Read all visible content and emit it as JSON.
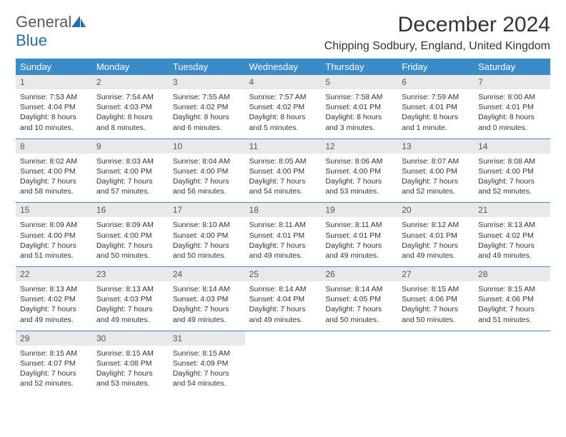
{
  "brand": {
    "general": "General",
    "blue": "Blue"
  },
  "title": "December 2024",
  "location": "Chipping Sodbury, England, United Kingdom",
  "colors": {
    "header_bg": "#3b8bc9",
    "header_text": "#ffffff",
    "daynum_bg": "#e9e9e9",
    "daynum_text": "#555555",
    "body_text": "#333333",
    "separator": "#3b8bc9",
    "brand_gray": "#5a5a5a",
    "brand_blue": "#1f6fb2",
    "page_bg": "#ffffff"
  },
  "typography": {
    "title_fontsize": 30,
    "location_fontsize": 16,
    "dow_fontsize": 13,
    "daynum_fontsize": 12,
    "body_fontsize": 10.5,
    "family": "Arial"
  },
  "dow": [
    "Sunday",
    "Monday",
    "Tuesday",
    "Wednesday",
    "Thursday",
    "Friday",
    "Saturday"
  ],
  "weeks": [
    [
      {
        "n": "1",
        "sr": "Sunrise: 7:53 AM",
        "ss": "Sunset: 4:04 PM",
        "dl1": "Daylight: 8 hours",
        "dl2": "and 10 minutes."
      },
      {
        "n": "2",
        "sr": "Sunrise: 7:54 AM",
        "ss": "Sunset: 4:03 PM",
        "dl1": "Daylight: 8 hours",
        "dl2": "and 8 minutes."
      },
      {
        "n": "3",
        "sr": "Sunrise: 7:55 AM",
        "ss": "Sunset: 4:02 PM",
        "dl1": "Daylight: 8 hours",
        "dl2": "and 6 minutes."
      },
      {
        "n": "4",
        "sr": "Sunrise: 7:57 AM",
        "ss": "Sunset: 4:02 PM",
        "dl1": "Daylight: 8 hours",
        "dl2": "and 5 minutes."
      },
      {
        "n": "5",
        "sr": "Sunrise: 7:58 AM",
        "ss": "Sunset: 4:01 PM",
        "dl1": "Daylight: 8 hours",
        "dl2": "and 3 minutes."
      },
      {
        "n": "6",
        "sr": "Sunrise: 7:59 AM",
        "ss": "Sunset: 4:01 PM",
        "dl1": "Daylight: 8 hours",
        "dl2": "and 1 minute."
      },
      {
        "n": "7",
        "sr": "Sunrise: 8:00 AM",
        "ss": "Sunset: 4:01 PM",
        "dl1": "Daylight: 8 hours",
        "dl2": "and 0 minutes."
      }
    ],
    [
      {
        "n": "8",
        "sr": "Sunrise: 8:02 AM",
        "ss": "Sunset: 4:00 PM",
        "dl1": "Daylight: 7 hours",
        "dl2": "and 58 minutes."
      },
      {
        "n": "9",
        "sr": "Sunrise: 8:03 AM",
        "ss": "Sunset: 4:00 PM",
        "dl1": "Daylight: 7 hours",
        "dl2": "and 57 minutes."
      },
      {
        "n": "10",
        "sr": "Sunrise: 8:04 AM",
        "ss": "Sunset: 4:00 PM",
        "dl1": "Daylight: 7 hours",
        "dl2": "and 56 minutes."
      },
      {
        "n": "11",
        "sr": "Sunrise: 8:05 AM",
        "ss": "Sunset: 4:00 PM",
        "dl1": "Daylight: 7 hours",
        "dl2": "and 54 minutes."
      },
      {
        "n": "12",
        "sr": "Sunrise: 8:06 AM",
        "ss": "Sunset: 4:00 PM",
        "dl1": "Daylight: 7 hours",
        "dl2": "and 53 minutes."
      },
      {
        "n": "13",
        "sr": "Sunrise: 8:07 AM",
        "ss": "Sunset: 4:00 PM",
        "dl1": "Daylight: 7 hours",
        "dl2": "and 52 minutes."
      },
      {
        "n": "14",
        "sr": "Sunrise: 8:08 AM",
        "ss": "Sunset: 4:00 PM",
        "dl1": "Daylight: 7 hours",
        "dl2": "and 52 minutes."
      }
    ],
    [
      {
        "n": "15",
        "sr": "Sunrise: 8:09 AM",
        "ss": "Sunset: 4:00 PM",
        "dl1": "Daylight: 7 hours",
        "dl2": "and 51 minutes."
      },
      {
        "n": "16",
        "sr": "Sunrise: 8:09 AM",
        "ss": "Sunset: 4:00 PM",
        "dl1": "Daylight: 7 hours",
        "dl2": "and 50 minutes."
      },
      {
        "n": "17",
        "sr": "Sunrise: 8:10 AM",
        "ss": "Sunset: 4:00 PM",
        "dl1": "Daylight: 7 hours",
        "dl2": "and 50 minutes."
      },
      {
        "n": "18",
        "sr": "Sunrise: 8:11 AM",
        "ss": "Sunset: 4:01 PM",
        "dl1": "Daylight: 7 hours",
        "dl2": "and 49 minutes."
      },
      {
        "n": "19",
        "sr": "Sunrise: 8:11 AM",
        "ss": "Sunset: 4:01 PM",
        "dl1": "Daylight: 7 hours",
        "dl2": "and 49 minutes."
      },
      {
        "n": "20",
        "sr": "Sunrise: 8:12 AM",
        "ss": "Sunset: 4:01 PM",
        "dl1": "Daylight: 7 hours",
        "dl2": "and 49 minutes."
      },
      {
        "n": "21",
        "sr": "Sunrise: 8:13 AM",
        "ss": "Sunset: 4:02 PM",
        "dl1": "Daylight: 7 hours",
        "dl2": "and 49 minutes."
      }
    ],
    [
      {
        "n": "22",
        "sr": "Sunrise: 8:13 AM",
        "ss": "Sunset: 4:02 PM",
        "dl1": "Daylight: 7 hours",
        "dl2": "and 49 minutes."
      },
      {
        "n": "23",
        "sr": "Sunrise: 8:13 AM",
        "ss": "Sunset: 4:03 PM",
        "dl1": "Daylight: 7 hours",
        "dl2": "and 49 minutes."
      },
      {
        "n": "24",
        "sr": "Sunrise: 8:14 AM",
        "ss": "Sunset: 4:03 PM",
        "dl1": "Daylight: 7 hours",
        "dl2": "and 49 minutes."
      },
      {
        "n": "25",
        "sr": "Sunrise: 8:14 AM",
        "ss": "Sunset: 4:04 PM",
        "dl1": "Daylight: 7 hours",
        "dl2": "and 49 minutes."
      },
      {
        "n": "26",
        "sr": "Sunrise: 8:14 AM",
        "ss": "Sunset: 4:05 PM",
        "dl1": "Daylight: 7 hours",
        "dl2": "and 50 minutes."
      },
      {
        "n": "27",
        "sr": "Sunrise: 8:15 AM",
        "ss": "Sunset: 4:06 PM",
        "dl1": "Daylight: 7 hours",
        "dl2": "and 50 minutes."
      },
      {
        "n": "28",
        "sr": "Sunrise: 8:15 AM",
        "ss": "Sunset: 4:06 PM",
        "dl1": "Daylight: 7 hours",
        "dl2": "and 51 minutes."
      }
    ],
    [
      {
        "n": "29",
        "sr": "Sunrise: 8:15 AM",
        "ss": "Sunset: 4:07 PM",
        "dl1": "Daylight: 7 hours",
        "dl2": "and 52 minutes."
      },
      {
        "n": "30",
        "sr": "Sunrise: 8:15 AM",
        "ss": "Sunset: 4:08 PM",
        "dl1": "Daylight: 7 hours",
        "dl2": "and 53 minutes."
      },
      {
        "n": "31",
        "sr": "Sunrise: 8:15 AM",
        "ss": "Sunset: 4:09 PM",
        "dl1": "Daylight: 7 hours",
        "dl2": "and 54 minutes."
      },
      null,
      null,
      null,
      null
    ]
  ]
}
